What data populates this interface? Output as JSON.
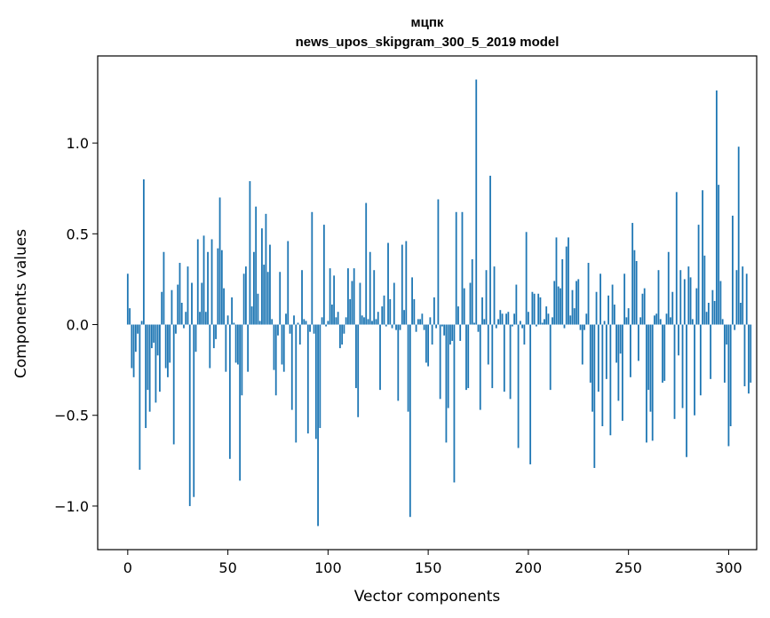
{
  "chart_data": {
    "type": "bar",
    "title_line1": "мцпк",
    "title_line2": "news_upos_skipgram_300_5_2019 model",
    "xlabel": "Vector components",
    "ylabel": "Components values",
    "xlim": [
      -15,
      314
    ],
    "ylim": [
      -1.24,
      1.48
    ],
    "xticks": [
      0,
      50,
      100,
      150,
      200,
      250,
      300
    ],
    "xtick_labels": [
      "0",
      "50",
      "100",
      "150",
      "200",
      "250",
      "300"
    ],
    "yticks": [
      -1.0,
      -0.5,
      0.0,
      0.5,
      1.0
    ],
    "ytick_labels": [
      "−1.0",
      "−0.5",
      "0.0",
      "0.5",
      "1.0"
    ],
    "bar_color": "#1f77b4",
    "values": [
      0.28,
      0.09,
      -0.24,
      -0.29,
      -0.15,
      -0.05,
      -0.8,
      0.02,
      0.8,
      -0.57,
      -0.36,
      -0.48,
      -0.13,
      -0.1,
      -0.43,
      -0.17,
      -0.37,
      0.18,
      0.4,
      -0.24,
      -0.29,
      -0.21,
      0.19,
      -0.66,
      -0.05,
      0.22,
      0.34,
      0.12,
      -0.02,
      0.07,
      0.32,
      -1.0,
      0.23,
      -0.95,
      -0.15,
      0.47,
      0.07,
      0.23,
      0.49,
      0.07,
      0.4,
      -0.24,
      0.47,
      -0.13,
      -0.08,
      0.42,
      0.7,
      0.41,
      0.2,
      -0.26,
      0.05,
      -0.74,
      0.15,
      0.01,
      -0.21,
      -0.22,
      -0.86,
      -0.39,
      0.28,
      0.32,
      -0.26,
      0.79,
      0.1,
      0.4,
      0.65,
      0.17,
      0.02,
      0.53,
      0.33,
      0.61,
      0.29,
      0.44,
      0.03,
      -0.25,
      -0.39,
      -0.06,
      0.29,
      -0.22,
      -0.26,
      0.06,
      0.46,
      -0.05,
      -0.47,
      0.05,
      -0.65,
      0.01,
      -0.11,
      0.3,
      0.03,
      0.02,
      -0.6,
      -0.04,
      0.62,
      -0.05,
      -0.63,
      -1.11,
      -0.57,
      0.04,
      0.55,
      -0.01,
      0.02,
      0.31,
      0.11,
      0.27,
      0.04,
      0.07,
      -0.13,
      -0.11,
      -0.05,
      0.04,
      0.31,
      0.14,
      0.24,
      0.31,
      -0.35,
      -0.51,
      0.23,
      0.05,
      0.04,
      0.67,
      0.03,
      0.4,
      0.02,
      0.3,
      0.03,
      0.07,
      -0.36,
      0.1,
      0.16,
      -0.01,
      0.45,
      0.14,
      -0.02,
      0.23,
      -0.03,
      -0.42,
      -0.03,
      0.44,
      0.08,
      0.46,
      -0.48,
      -1.06,
      0.26,
      0.14,
      -0.04,
      0.03,
      0.03,
      0.06,
      -0.03,
      -0.21,
      -0.23,
      0.04,
      -0.11,
      0.15,
      -0.02,
      0.69,
      -0.41,
      -0.01,
      -0.06,
      -0.65,
      -0.46,
      -0.11,
      -0.09,
      -0.87,
      0.62,
      0.1,
      -0.09,
      0.62,
      0.2,
      -0.36,
      -0.35,
      0.23,
      0.36,
      0.01,
      1.35,
      -0.04,
      -0.47,
      0.15,
      0.03,
      0.3,
      -0.22,
      0.82,
      -0.35,
      0.32,
      -0.02,
      0.03,
      0.08,
      0.06,
      -0.37,
      0.06,
      0.07,
      -0.41,
      -0.01,
      0.06,
      0.22,
      -0.68,
      0.02,
      -0.02,
      -0.11,
      0.51,
      0.07,
      -0.77,
      0.18,
      0.17,
      -0.01,
      0.17,
      0.15,
      0.01,
      0.03,
      0.1,
      0.06,
      -0.36,
      0.04,
      0.24,
      0.48,
      0.21,
      0.2,
      0.36,
      -0.02,
      0.43,
      0.48,
      0.05,
      0.19,
      0.09,
      0.24,
      0.25,
      -0.03,
      -0.22,
      -0.03,
      0.06,
      0.34,
      -0.32,
      -0.48,
      -0.79,
      0.18,
      -0.37,
      0.28,
      -0.56,
      0.02,
      -0.3,
      0.16,
      -0.61,
      0.22,
      0.11,
      -0.21,
      -0.42,
      -0.16,
      -0.53,
      0.28,
      0.04,
      0.09,
      -0.29,
      0.56,
      0.41,
      0.35,
      -0.2,
      0.04,
      0.17,
      0.2,
      -0.65,
      -0.36,
      -0.48,
      -0.64,
      0.05,
      0.06,
      0.3,
      0.03,
      -0.32,
      -0.31,
      0.06,
      0.4,
      0.04,
      0.18,
      -0.52,
      0.73,
      -0.17,
      0.3,
      -0.46,
      0.25,
      -0.73,
      0.32,
      0.26,
      0.03,
      -0.5,
      0.2,
      0.55,
      -0.39,
      0.74,
      0.38,
      0.07,
      0.12,
      -0.3,
      0.19,
      0.13,
      1.29,
      0.77,
      0.24,
      0.03,
      -0.32,
      -0.11,
      -0.67,
      -0.56,
      0.6,
      -0.03,
      0.3,
      0.98,
      0.12,
      0.32,
      -0.34,
      0.28,
      -0.38,
      -0.32
    ]
  }
}
